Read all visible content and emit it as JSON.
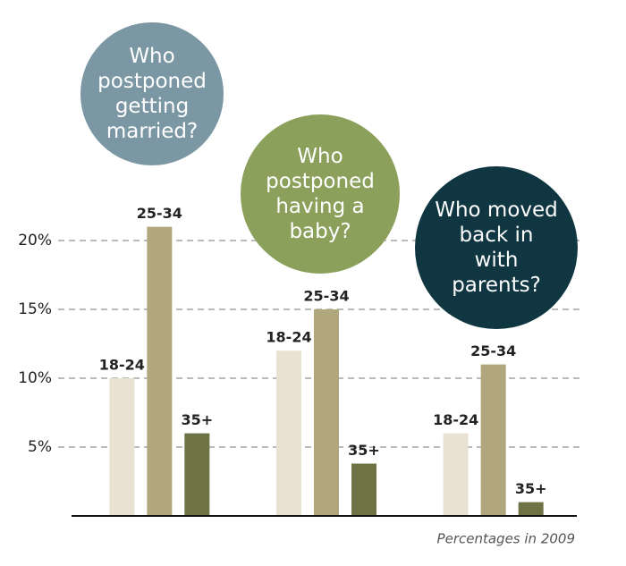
{
  "chart_data": {
    "type": "bar",
    "categories": [
      "Who postponed getting married?",
      "Who postponed having a baby?",
      "Who moved back in with parents?"
    ],
    "category_colors": [
      "#7b97a4",
      "#8aa05b",
      "#0f3641"
    ],
    "series": [
      {
        "name": "18-24",
        "color": "#e9e2d2",
        "values": [
          10,
          12,
          6
        ]
      },
      {
        "name": "25-34",
        "color": "#b1a77c",
        "values": [
          21,
          15,
          11
        ]
      },
      {
        "name": "35+",
        "color": "#6e7245",
        "values": [
          6,
          3.8,
          1
        ]
      }
    ],
    "ylim": [
      0,
      25
    ],
    "yticks": [
      {
        "value": 5,
        "label": "5%"
      },
      {
        "value": 10,
        "label": "10%"
      },
      {
        "value": 15,
        "label": "15%"
      },
      {
        "value": 20,
        "label": "20%"
      }
    ],
    "grid": true,
    "note": "Percentages in 2009"
  }
}
